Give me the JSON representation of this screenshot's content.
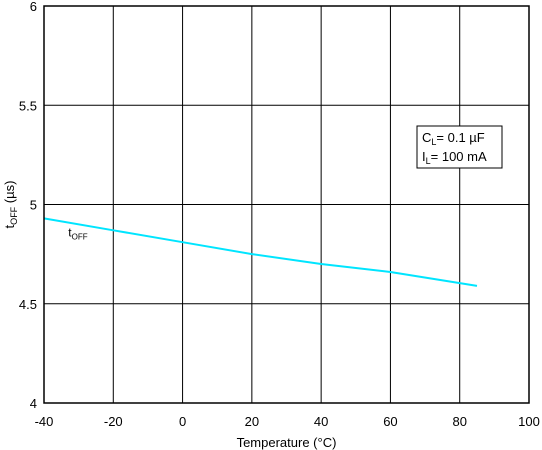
{
  "chart_data": {
    "type": "line",
    "xlabel": "Temperature (°C)",
    "ylabel": {
      "main": "t",
      "sub": "OFF",
      "unit": " (µs)"
    },
    "xlim": [
      -40,
      100
    ],
    "ylim": [
      4,
      6
    ],
    "xticks": [
      -40,
      -20,
      0,
      20,
      40,
      60,
      80,
      100
    ],
    "yticks": [
      4,
      4.5,
      5,
      5.5,
      6
    ],
    "grid": true,
    "line_color": "#00E5FF",
    "series": [
      {
        "label_main": "t",
        "label_sub": "OFF",
        "x": [
          -40,
          -20,
          0,
          20,
          40,
          60,
          85
        ],
        "y": [
          4.93,
          4.87,
          4.81,
          4.75,
          4.7,
          4.66,
          4.59
        ]
      }
    ],
    "legend_box": {
      "placement": "top-right",
      "lines": [
        {
          "main": "C",
          "sub": "L",
          "rest": "= 0.1 µF"
        },
        {
          "main": "I",
          "sub": "L",
          "rest": "= 100 mA"
        }
      ]
    }
  }
}
